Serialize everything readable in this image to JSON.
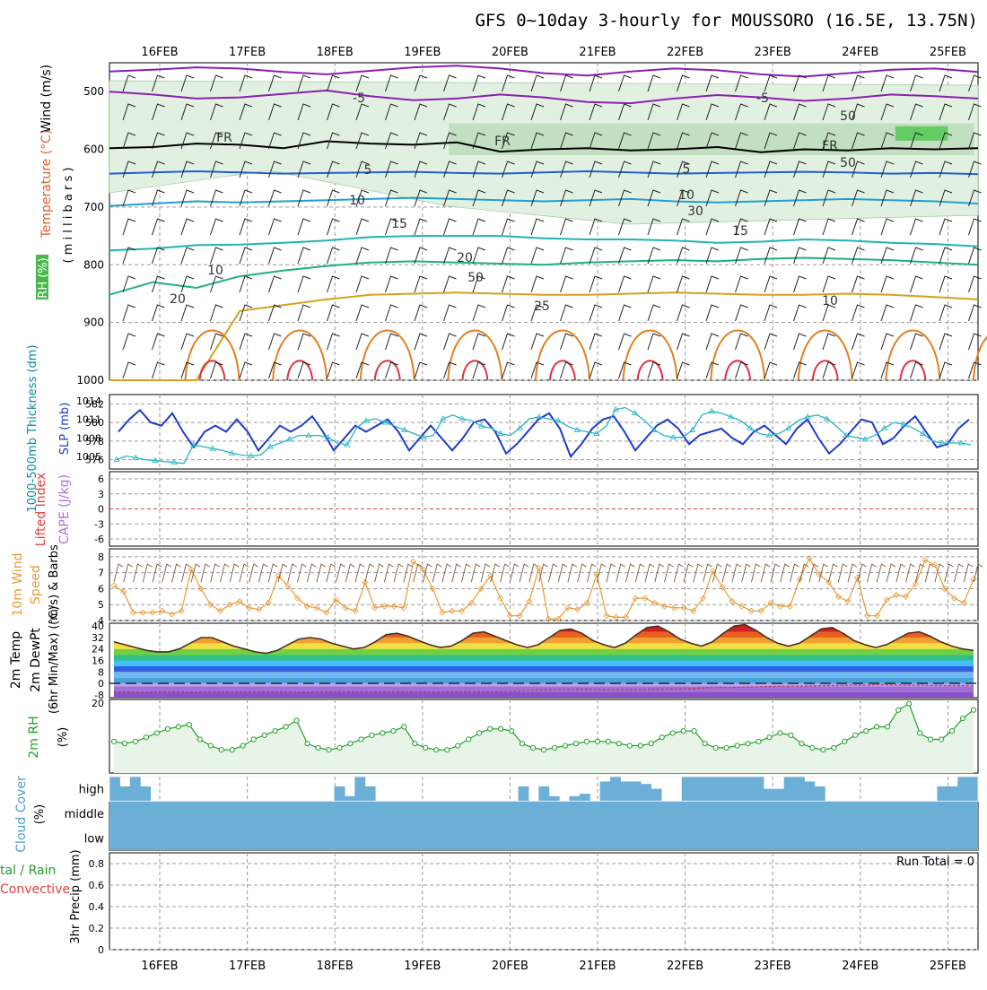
{
  "title": "GFS 0~10day 3-hourly for MOUSSORO (16.5E, 13.75N)",
  "x_axis": {
    "ticks": [
      "16FEB",
      "17FEB",
      "18FEB",
      "19FEB",
      "20FEB",
      "21FEB",
      "22FEB",
      "23FEB",
      "24FEB",
      "25FEB"
    ]
  },
  "panel_labels": {
    "upper_wind": "Wind (m/s)",
    "upper_temp": "Temperature (°C)",
    "upper_rh": "RH (%)",
    "upper_pres": "( m i l l i b a r s )",
    "thick": "1000-500mb Thickness (dm)",
    "slp": "SLP (mb)",
    "li": "Lifted Index",
    "cape": "CAPE (J/kg)",
    "wind10_a": "10m Wind",
    "wind10_b": "Speed",
    "wind10_c": "(m/s) & Barbs",
    "temp_a": "2m Temp",
    "temp_b": "2m DewPt",
    "temp_c": "(6hr Min/Max) (°C)",
    "rh2m": "2m RH",
    "rh2m_unit": "(%)",
    "cloud_a": "Cloud Cover",
    "cloud_b": "(%)",
    "precip_a": "tal / Rain",
    "precip_b": "Convective",
    "precip_c": "3hr Precip (mm)",
    "run_total": "Run Total = 0"
  },
  "colors": {
    "slp": "#1e3cc8",
    "thickness": "#28b4c8",
    "wind_speed": "#e89a3a",
    "rh": "#22a02a",
    "cloud": "#6baed6",
    "li": "#e04040",
    "cape": "#b070d0",
    "temp_label": "#e06030"
  },
  "chart_data": [
    {
      "type": "contour",
      "name": "upper-air cross-section",
      "y_ticks": [
        500,
        600,
        700,
        800,
        900,
        1000
      ],
      "ylim": [
        1000,
        450
      ],
      "contour_labels": [
        "-5",
        "-5",
        "FR",
        "FR",
        "FR",
        "5",
        "5",
        "10",
        "10",
        "15",
        "15",
        "20",
        "20",
        "25",
        "10",
        "10",
        "50",
        "50",
        "50",
        "30"
      ],
      "temperature_isotherms": [
        {
          "value": -5,
          "color": "#8a20b0",
          "p": [
            465,
            462,
            458,
            460,
            466,
            470,
            464,
            458,
            455,
            460,
            468,
            472,
            465,
            460,
            463,
            470,
            474,
            468,
            462,
            460,
            466
          ]
        },
        {
          "value": -5,
          "color": "#8a20b0",
          "p": [
            500,
            505,
            512,
            510,
            504,
            498,
            508,
            515,
            512,
            505,
            510,
            518,
            520,
            512,
            506,
            510,
            516,
            512,
            505,
            508,
            512
          ]
        },
        {
          "value": 0,
          "color": "#000000",
          "p": [
            598,
            596,
            590,
            592,
            598,
            586,
            590,
            592,
            588,
            604,
            600,
            598,
            602,
            600,
            596,
            605,
            600,
            602,
            598,
            600,
            598
          ]
        },
        {
          "value": 5,
          "color": "#2060d0",
          "p": [
            642,
            640,
            638,
            640,
            642,
            641,
            640,
            639,
            641,
            642,
            640,
            638,
            640,
            642,
            641,
            640,
            639,
            640,
            642,
            641,
            643
          ]
        },
        {
          "value": 10,
          "color": "#20a0d0",
          "p": [
            698,
            694,
            690,
            692,
            690,
            688,
            686,
            684,
            686,
            688,
            690,
            688,
            686,
            690,
            692,
            690,
            688,
            686,
            688,
            690,
            694
          ]
        },
        {
          "value": 15,
          "color": "#20b4b4",
          "p": [
            775,
            772,
            766,
            765,
            762,
            758,
            752,
            750,
            750,
            750,
            754,
            756,
            756,
            758,
            762,
            760,
            756,
            758,
            762,
            764,
            768
          ]
        },
        {
          "value": 20,
          "color": "#20b080",
          "p": [
            852,
            830,
            840,
            820,
            810,
            802,
            796,
            794,
            796,
            798,
            800,
            796,
            794,
            792,
            794,
            790,
            788,
            790,
            792,
            796,
            800
          ]
        },
        {
          "value": 25,
          "color": "#d4a020",
          "p": [
            1000,
            1000,
            1000,
            880,
            870,
            860,
            852,
            850,
            848,
            850,
            852,
            852,
            850,
            848,
            850,
            852,
            852,
            850,
            852,
            856,
            860
          ]
        }
      ],
      "rh_zones": [
        {
          "value": 50,
          "color": "#bcdcbc",
          "start": 19.3,
          "end": 25.3,
          "top": 555,
          "bottom": 610
        },
        {
          "value": 70,
          "color": "#55c855",
          "start": 24.4,
          "end": 25.0,
          "top": 560,
          "bottom": 585
        }
      ]
    },
    {
      "type": "line",
      "name": "thickness and sea-level pressure",
      "y_left_ticks": [
        576,
        578,
        580,
        582
      ],
      "y_left_range": [
        575,
        583
      ],
      "y_right_ticks": [
        1005,
        1008,
        1011,
        1014
      ],
      "y_right_range": [
        1003,
        1015
      ],
      "series": [
        {
          "name": "SLP (mb)",
          "axis": "right",
          "values": [
            1009,
            1011,
            1012.5,
            1010.5,
            1010,
            1012,
            1009,
            1006.5,
            1009,
            1010,
            1009,
            1011,
            1009,
            1006,
            1008,
            1010,
            1009,
            1010,
            1011.5,
            1009,
            1006,
            1008,
            1010,
            1009,
            1010,
            1011,
            1009,
            1006,
            1008,
            1010,
            1008,
            1006,
            1008,
            1010.5,
            1011,
            1009,
            1005.5,
            1007,
            1009,
            1011,
            1012,
            1009.5,
            1005,
            1007,
            1009.5,
            1011,
            1011.5,
            1009,
            1006,
            1008,
            1010,
            1011,
            1009.5,
            1007,
            1008.5,
            1009,
            1009.5,
            1008,
            1007,
            1009,
            1010,
            1008.5,
            1007,
            1009.5,
            1011,
            1008,
            1005.5,
            1007,
            1009,
            1011,
            1010.5,
            1007,
            1008,
            1010,
            1011.5,
            1009,
            1006.5,
            1007,
            1009.5,
            1011
          ]
        },
        {
          "name": "1000-500mb Thickness (dm)",
          "axis": "left",
          "values": [
            576,
            576.4,
            576.2,
            576,
            575.9,
            575.8,
            575.7,
            575.6,
            577.6,
            577.4,
            577.2,
            577,
            576.7,
            576.5,
            576.4,
            576.5,
            577.4,
            577.8,
            578.2,
            578.6,
            578.6,
            578.6,
            578.4,
            577.8,
            577.6,
            579.4,
            580.2,
            580.4,
            580,
            579.6,
            579.2,
            578.8,
            578.4,
            578.6,
            580.4,
            580.8,
            580.4,
            580.2,
            579.6,
            579.4,
            578.8,
            578.6,
            579.4,
            580.4,
            580.6,
            580.4,
            580.2,
            579.6,
            579.2,
            579,
            578.8,
            579.6,
            581.4,
            581.6,
            581,
            580.2,
            579.2,
            578.6,
            578.4,
            578.4,
            579.2,
            580.8,
            581.2,
            581,
            580.6,
            580.2,
            579.4,
            578.8,
            578.6,
            578.8,
            579.4,
            580.2,
            580.6,
            580.8,
            580.4,
            579.6,
            578.6,
            578.4,
            578.2,
            578.6,
            579.4,
            580,
            579.8,
            579.4,
            578.8,
            578,
            577.8,
            577.8,
            577.8,
            577.6
          ]
        }
      ]
    },
    {
      "type": "line",
      "name": "Lifted Index and CAPE",
      "y_ticks": [
        "6",
        "3",
        "0",
        "-3",
        "-6"
      ],
      "reference_line": 0
    },
    {
      "type": "line",
      "name": "10m wind speed",
      "y_ticks": [
        4,
        5,
        6,
        7,
        8
      ],
      "ylim": [
        4,
        8.5
      ],
      "values": [
        6.2,
        5.8,
        4.5,
        4.5,
        4.5,
        4.6,
        4.4,
        4.6,
        7.2,
        6,
        5,
        4.6,
        5,
        5.2,
        4.8,
        4.7,
        5.1,
        6.8,
        6.2,
        5.4,
        4.9,
        4.8,
        4.5,
        5.3,
        4.8,
        4.6,
        6.4,
        4.8,
        4.9,
        4.9,
        4.8,
        7.7,
        7.2,
        6,
        4.5,
        4.6,
        4.6,
        5.1,
        6,
        6.8,
        5.4,
        4.3,
        4.3,
        5.2,
        7.3,
        4.1,
        4.1,
        4.8,
        4.7,
        5.1,
        6.9,
        4.3,
        4.2,
        4.2,
        5.4,
        5.4,
        5.1,
        4.9,
        4.8,
        4.8,
        4.6,
        5.4,
        7.1,
        6.1,
        5.2,
        4.9,
        4.6,
        4.6,
        5.1,
        4.9,
        4.9,
        6.6,
        7.9,
        6.9,
        6.4,
        5.5,
        5.2,
        6.7,
        4.3,
        4.3,
        5.3,
        5.6,
        5.5,
        6.3,
        7.8,
        7.5,
        6,
        5.4,
        5.1,
        6.6
      ]
    },
    {
      "type": "area",
      "name": "2m temperature and dewpoint",
      "y_ticks": [
        40,
        32,
        24,
        16,
        8,
        0,
        -8
      ],
      "extra_tick": "20",
      "ylim": [
        -10,
        42
      ],
      "temperature": [
        29,
        27,
        25,
        23,
        22,
        22,
        24,
        28,
        32,
        32,
        29,
        26,
        24,
        22,
        21,
        23,
        27,
        31,
        32,
        31,
        28,
        26,
        24,
        25,
        29,
        34,
        35,
        33,
        30,
        27,
        25,
        26,
        30,
        35,
        36,
        33,
        30,
        27,
        25,
        27,
        32,
        37,
        38,
        35,
        30,
        27,
        25,
        28,
        34,
        39,
        40,
        36,
        31,
        28,
        26,
        29,
        35,
        40,
        41,
        37,
        32,
        28,
        26,
        28,
        33,
        38,
        39,
        35,
        30,
        27,
        25,
        27,
        31,
        35,
        36,
        33,
        29,
        26,
        24,
        23
      ],
      "dewpoint": [
        -6,
        -6,
        -6.2,
        -6,
        -5.8,
        -6,
        -6.1,
        -6,
        -5.9,
        -6,
        -6,
        -5.8,
        -5.9,
        -6,
        -6.2,
        -6,
        -5.8,
        -5.7,
        -5.9,
        -6,
        -6,
        -5.8,
        -5.9,
        -6,
        -6.1,
        -5.9,
        -5.8,
        -5.9,
        -6,
        -5.7,
        -5.5,
        -5,
        -4.6,
        -4.2,
        -4.2,
        -4,
        -4.2,
        -4.4,
        -4.6,
        -4.4,
        -4.2,
        -4,
        -3.8,
        -3.6,
        -3.2,
        -3,
        -3,
        -2.6,
        -2.4,
        -2.2,
        -2,
        -2,
        -1.8,
        -1.6,
        -1.4,
        -1.2,
        -1.2,
        -1,
        -1.1,
        -1.2,
        -1.2,
        -1.4,
        -1.6,
        -1.6,
        -1.8
      ]
    },
    {
      "type": "area",
      "name": "2m relative humidity",
      "values": [
        15,
        14,
        15,
        17,
        19,
        21,
        22,
        23,
        16,
        13,
        11,
        11,
        13,
        16,
        18,
        20,
        22,
        25,
        14,
        12,
        11,
        12,
        14,
        16,
        18,
        19,
        20,
        22,
        14,
        12,
        11,
        11,
        13,
        16,
        19,
        21,
        21,
        20,
        14,
        12,
        11,
        12,
        13,
        14,
        15,
        15,
        15,
        14,
        13,
        13,
        14,
        17,
        19,
        20,
        20,
        14,
        12,
        12,
        13,
        14,
        15,
        17,
        19,
        18,
        14,
        12,
        11,
        12,
        15,
        18,
        20,
        22,
        22,
        30,
        33,
        19,
        16,
        16,
        20,
        26,
        30
      ],
      "ylim": [
        0,
        35
      ]
    },
    {
      "type": "bar",
      "name": "cloud cover",
      "y_ticks": [
        "high",
        "middle",
        "low"
      ],
      "high_cloud_pct": [
        100,
        60,
        100,
        60,
        0,
        0,
        0,
        0,
        0,
        0,
        0,
        0,
        0,
        0,
        0,
        0,
        0,
        0,
        0,
        0,
        0,
        0,
        60,
        20,
        100,
        60,
        0,
        0,
        0,
        0,
        0,
        0,
        0,
        0,
        0,
        0,
        0,
        0,
        0,
        0,
        60,
        0,
        60,
        20,
        0,
        20,
        30,
        0,
        80,
        100,
        80,
        80,
        70,
        50,
        0,
        0,
        100,
        100,
        100,
        100,
        100,
        100,
        100,
        100,
        50,
        50,
        100,
        100,
        80,
        60,
        0,
        0,
        0,
        0,
        0,
        0,
        0,
        0,
        0,
        0,
        0,
        60,
        60,
        100,
        100
      ],
      "middle_cloud_pct": [
        100,
        100,
        100,
        100,
        100,
        100,
        100,
        100,
        100,
        100,
        100,
        100,
        100,
        100,
        100,
        100,
        100,
        100,
        100,
        100,
        100,
        100,
        100,
        100,
        100,
        100,
        100,
        100,
        100,
        100,
        100,
        100,
        100,
        100,
        100,
        100,
        100,
        100,
        100,
        100,
        100,
        100,
        100,
        100,
        100,
        100,
        100,
        100,
        100,
        100,
        100,
        100,
        100,
        100,
        100,
        100,
        100,
        100,
        100,
        100,
        100,
        100,
        100,
        100,
        100,
        100,
        100,
        100,
        100,
        100,
        100,
        100,
        100,
        100,
        100,
        100,
        100,
        100,
        100,
        100,
        100,
        100,
        100,
        100,
        100
      ]
    },
    {
      "type": "bar",
      "name": "3hr precipitation",
      "y_ticks": [
        0,
        0.2,
        0.4,
        0.6,
        0.8
      ],
      "ylim": [
        0,
        0.9
      ],
      "run_total": 0
    }
  ]
}
